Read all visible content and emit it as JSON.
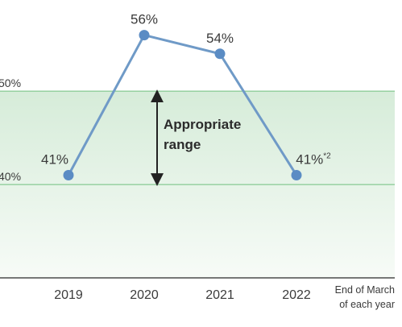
{
  "chart_data": {
    "type": "line",
    "categories": [
      "2019",
      "2020",
      "2021",
      "2022"
    ],
    "values": [
      41,
      56,
      54,
      41
    ],
    "data_labels": [
      "41%",
      "56%",
      "54%",
      "41%"
    ],
    "footnote_marker": "*2",
    "y_ticks": [
      "50%",
      "40%"
    ],
    "ylim": [
      30,
      57
    ],
    "band": {
      "from": 40,
      "to": 50,
      "label_line1": "Appropriate",
      "label_line2": "range"
    },
    "x_note_line1": "End of March",
    "x_note_line2": "of each year",
    "colors": {
      "line": "#6f9ac7",
      "point": "#5b8cc4",
      "band_top": "#d6ecd9",
      "band_bottom": "#f7fbf7",
      "band_border": "#6fbf7f",
      "axis": "#4a4a4a",
      "arrow": "#222222"
    }
  }
}
